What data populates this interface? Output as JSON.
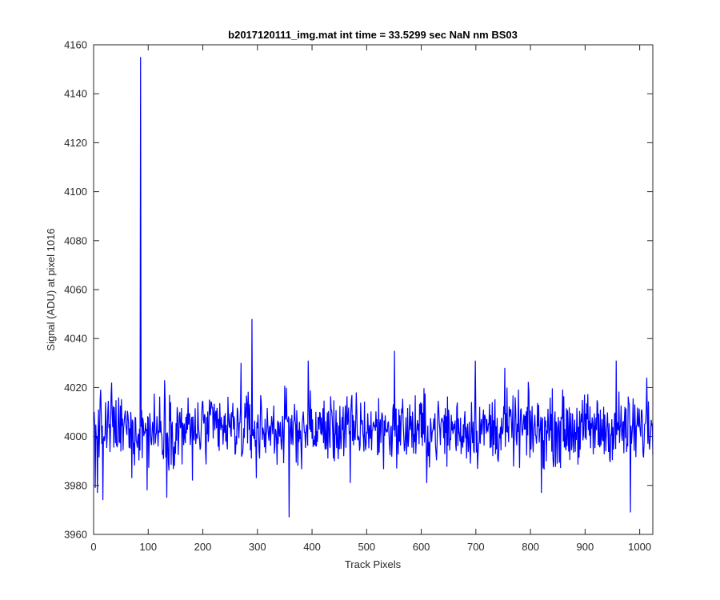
{
  "chart_data": {
    "type": "line",
    "title": "b2017120111_img.mat int time = 33.5299 sec  NaN nm BS03",
    "xlabel": "Track Pixels",
    "ylabel": "Signal (ADU) at pixel 1016",
    "xlim": [
      0,
      1024
    ],
    "ylim": [
      3960,
      4160
    ],
    "xticks": [
      0,
      100,
      200,
      300,
      400,
      500,
      600,
      700,
      800,
      900,
      1000
    ],
    "yticks": [
      3960,
      3980,
      4000,
      4020,
      4040,
      4060,
      4080,
      4100,
      4120,
      4140,
      4160
    ],
    "grid": false,
    "legend": "none",
    "line_color": "#0000ff",
    "series": [
      {
        "x_start": 1,
        "x_step": 1,
        "count": 1024,
        "baseline": 4003,
        "noise_amplitude": 7,
        "peaks": [
          {
            "x": 3,
            "y": 3979
          },
          {
            "x": 7,
            "y": 3977
          },
          {
            "x": 9,
            "y": 4011
          },
          {
            "x": 17,
            "y": 3974
          },
          {
            "x": 33,
            "y": 4022
          },
          {
            "x": 70,
            "y": 3983
          },
          {
            "x": 86,
            "y": 4155
          },
          {
            "x": 98,
            "y": 3978
          },
          {
            "x": 130,
            "y": 4023
          },
          {
            "x": 134,
            "y": 3975
          },
          {
            "x": 181,
            "y": 3982
          },
          {
            "x": 270,
            "y": 4030
          },
          {
            "x": 290,
            "y": 4048
          },
          {
            "x": 298,
            "y": 3983
          },
          {
            "x": 358,
            "y": 3967
          },
          {
            "x": 393,
            "y": 4031
          },
          {
            "x": 470,
            "y": 3981
          },
          {
            "x": 551,
            "y": 4035
          },
          {
            "x": 610,
            "y": 3981
          },
          {
            "x": 699,
            "y": 4031
          },
          {
            "x": 753,
            "y": 4028
          },
          {
            "x": 820,
            "y": 3977
          },
          {
            "x": 957,
            "y": 4031
          },
          {
            "x": 983,
            "y": 3969
          },
          {
            "x": 1013,
            "y": 4024
          }
        ]
      }
    ]
  }
}
